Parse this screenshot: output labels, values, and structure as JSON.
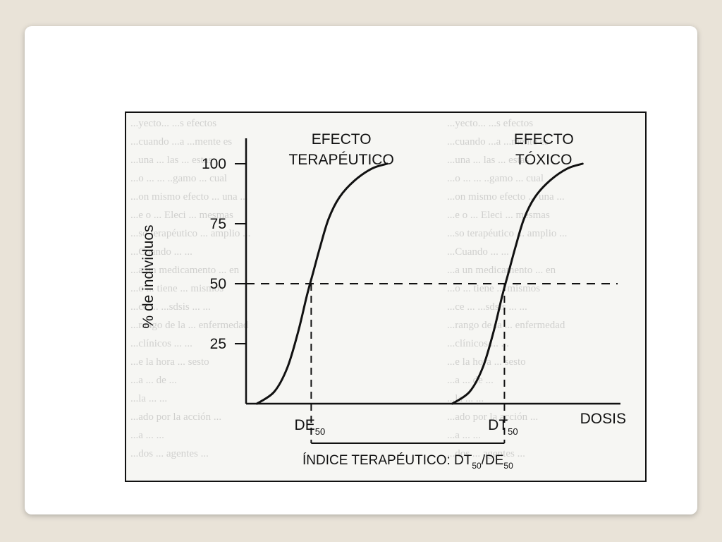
{
  "chart_data": {
    "type": "line",
    "title": "",
    "ylabel": "% de individuos",
    "xlabel": "DOSIS",
    "ylim": [
      0,
      100
    ],
    "yticks": [
      25,
      50,
      75,
      100
    ],
    "series": [
      {
        "name": "EFECTO TERAPÉUTICO",
        "label_lines": [
          "EFECTO",
          "TERAPÉUTICO"
        ],
        "x": [
          0.0,
          0.08,
          0.14,
          0.19,
          0.23,
          0.26,
          0.29,
          0.33,
          0.38,
          0.45,
          0.53,
          0.6
        ],
        "y": [
          0,
          5,
          15,
          30,
          45,
          55,
          65,
          77,
          86,
          93,
          98,
          100
        ]
      },
      {
        "name": "EFECTO TÓXICO",
        "label_lines": [
          "EFECTO",
          "TÓXICO"
        ],
        "x": [
          0.9,
          0.98,
          1.04,
          1.09,
          1.13,
          1.16,
          1.19,
          1.23,
          1.28,
          1.35,
          1.43,
          1.5
        ],
        "y": [
          0,
          5,
          15,
          30,
          45,
          55,
          65,
          77,
          86,
          93,
          98,
          100
        ]
      }
    ],
    "xlim": [
      -0.05,
      1.72
    ],
    "reference_line_y": 50,
    "markers": [
      {
        "base": "DE",
        "sub": "50",
        "x": 0.25
      },
      {
        "base": "DT",
        "sub": "50",
        "x": 1.14
      }
    ],
    "index_label": {
      "text": "ÍNDICE TERAPÉUTICO: DT",
      "sub1": "50",
      "mid": "/DE",
      "sub2": "50"
    },
    "background_text_lines": [
      "...yecto... ...s efectos",
      "...cuando ...a ...mente es",
      "...una ... las ... estas",
      "...o ... ... ..gamo ... cual",
      "...on mismo efecto ... una ...",
      "...e o ... Eleci ... mesmas",
      "...so terapéutico ... amplio ...",
      "...Cuando ... ...",
      "...a un medicamento ... en",
      "...o ... tiene ... mismos",
      "...ce ... ...sdsis ... ...",
      "...rango de la ... enfermedad",
      "...clínicos ... ...",
      "...e la hora ... sesto",
      "...a ... de ...",
      "...la ... ...",
      "...ado por la acción ...",
      "...a ... ...",
      "...dos ... agentes ..."
    ]
  }
}
